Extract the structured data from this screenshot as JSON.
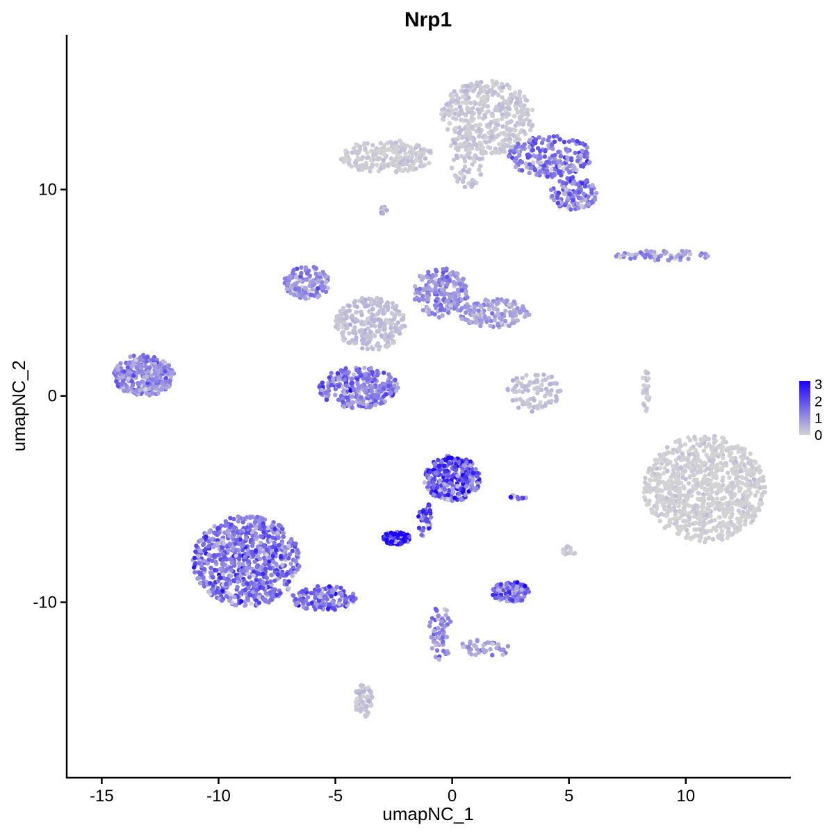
{
  "chart_data": {
    "type": "scatter",
    "title": "Nrp1",
    "xlabel": "umapNC_1",
    "ylabel": "umapNC_2",
    "xlim": [
      -16.5,
      14.5
    ],
    "ylim": [
      -18.5,
      17.5
    ],
    "x_ticks": [
      -15,
      -10,
      -5,
      0,
      5,
      10
    ],
    "x_tick_labels": [
      "-15",
      "-10",
      "-5",
      "0",
      "5",
      "10"
    ],
    "y_ticks": [
      10,
      0,
      -10
    ],
    "y_tick_labels": [
      "10",
      "0",
      "-10"
    ],
    "grid": false,
    "color_scale": {
      "low": "#d3d3d3",
      "high": "#1a00ff",
      "range": [
        0,
        3.2
      ],
      "breaks": [
        0,
        1,
        2,
        3
      ],
      "labels": [
        "0",
        "1",
        "2",
        "3"
      ],
      "legend_position": "right"
    },
    "clusters": [
      {
        "cx": 1.5,
        "cy": 13.5,
        "rx": 2.0,
        "ry": 1.8,
        "n": 420,
        "expr": 0.15
      },
      {
        "cx": 4.2,
        "cy": 11.6,
        "rx": 1.8,
        "ry": 1.0,
        "n": 200,
        "expr": 1.3
      },
      {
        "cx": 5.2,
        "cy": 9.8,
        "rx": 1.0,
        "ry": 0.8,
        "n": 120,
        "expr": 1.4
      },
      {
        "cx": -2.8,
        "cy": 11.6,
        "rx": 2.0,
        "ry": 0.8,
        "n": 220,
        "expr": 0.1
      },
      {
        "cx": 0.6,
        "cy": 11.5,
        "rx": 0.8,
        "ry": 1.5,
        "n": 80,
        "expr": 0.2
      },
      {
        "cx": 9.0,
        "cy": 6.8,
        "rx": 2.0,
        "ry": 0.25,
        "n": 60,
        "expr": 0.9
      },
      {
        "cx": -2.9,
        "cy": 9.0,
        "rx": 0.2,
        "ry": 0.2,
        "n": 8,
        "expr": 0.5
      },
      {
        "cx": -6.2,
        "cy": 5.5,
        "rx": 1.0,
        "ry": 0.8,
        "n": 140,
        "expr": 1.0
      },
      {
        "cx": -3.5,
        "cy": 3.5,
        "rx": 1.5,
        "ry": 1.3,
        "n": 260,
        "expr": 0.3
      },
      {
        "cx": -0.5,
        "cy": 5.0,
        "rx": 1.2,
        "ry": 1.2,
        "n": 200,
        "expr": 1.0
      },
      {
        "cx": 1.8,
        "cy": 4.0,
        "rx": 1.5,
        "ry": 0.7,
        "n": 160,
        "expr": 0.8
      },
      {
        "cx": -4.0,
        "cy": 0.4,
        "rx": 1.7,
        "ry": 1.0,
        "n": 300,
        "expr": 1.3
      },
      {
        "cx": -13.2,
        "cy": 1.0,
        "rx": 1.3,
        "ry": 1.0,
        "n": 300,
        "expr": 1.1
      },
      {
        "cx": 3.5,
        "cy": 0.2,
        "rx": 1.2,
        "ry": 1.0,
        "n": 90,
        "expr": 0.3
      },
      {
        "cx": 8.3,
        "cy": 0.2,
        "rx": 0.2,
        "ry": 1.0,
        "n": 30,
        "expr": 0.2
      },
      {
        "cx": 10.8,
        "cy": -4.5,
        "rx": 2.6,
        "ry": 2.6,
        "n": 900,
        "expr": 0.02
      },
      {
        "cx": 0.0,
        "cy": -4.0,
        "rx": 1.2,
        "ry": 1.1,
        "n": 330,
        "expr": 1.8
      },
      {
        "cx": -2.4,
        "cy": -6.9,
        "rx": 0.6,
        "ry": 0.3,
        "n": 150,
        "expr": 3.1
      },
      {
        "cx": -1.2,
        "cy": -5.9,
        "rx": 0.3,
        "ry": 0.9,
        "n": 40,
        "expr": 2.0
      },
      {
        "cx": -8.8,
        "cy": -8.0,
        "rx": 2.3,
        "ry": 2.2,
        "n": 750,
        "expr": 1.4
      },
      {
        "cx": -5.5,
        "cy": -9.8,
        "rx": 1.4,
        "ry": 0.6,
        "n": 140,
        "expr": 1.4
      },
      {
        "cx": 2.5,
        "cy": -9.5,
        "rx": 0.8,
        "ry": 0.5,
        "n": 110,
        "expr": 1.5
      },
      {
        "cx": -0.5,
        "cy": -11.5,
        "rx": 0.5,
        "ry": 1.3,
        "n": 60,
        "expr": 1.2
      },
      {
        "cx": 1.5,
        "cy": -12.2,
        "rx": 1.3,
        "ry": 0.4,
        "n": 40,
        "expr": 0.9
      },
      {
        "cx": -3.8,
        "cy": -14.8,
        "rx": 0.4,
        "ry": 0.8,
        "n": 60,
        "expr": 0.2
      },
      {
        "cx": 5.0,
        "cy": -7.5,
        "rx": 0.3,
        "ry": 0.3,
        "n": 14,
        "expr": 0.1
      },
      {
        "cx": 2.8,
        "cy": -4.9,
        "rx": 0.4,
        "ry": 0.1,
        "n": 12,
        "expr": 1.4
      }
    ]
  }
}
